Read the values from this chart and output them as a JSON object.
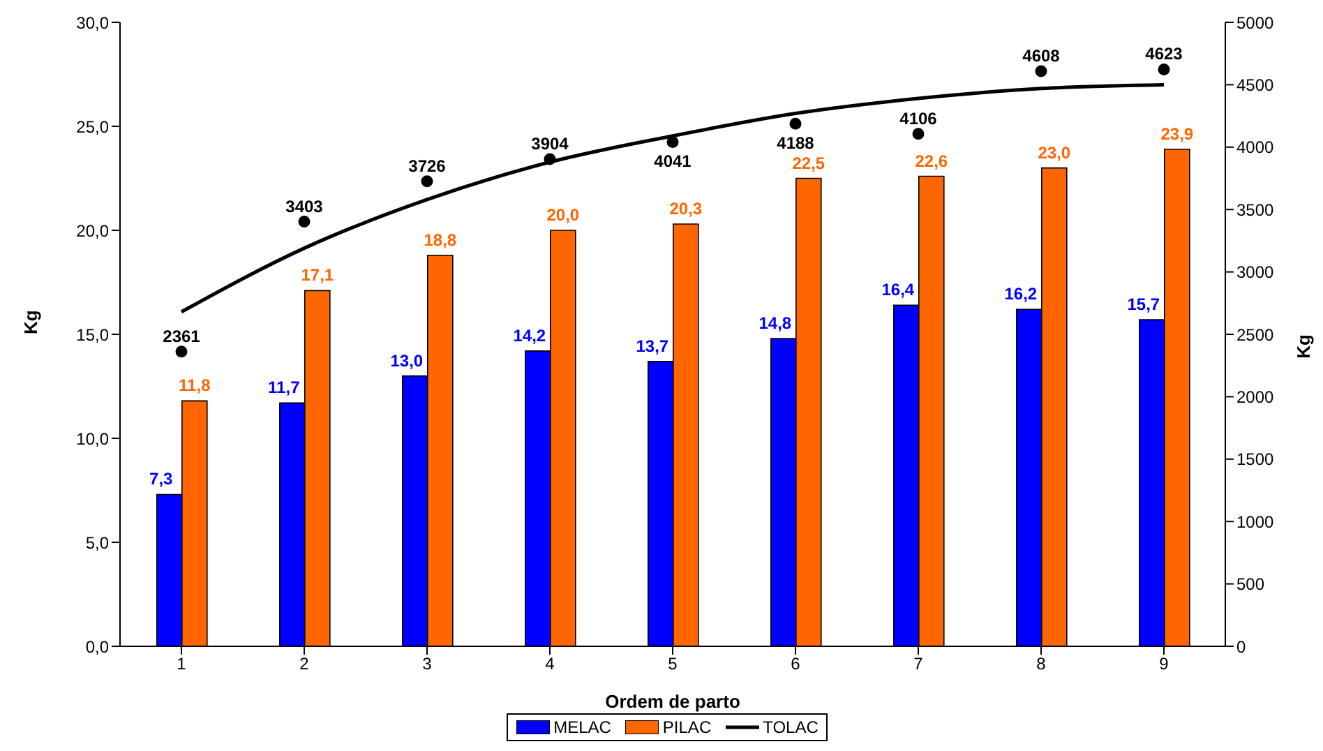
{
  "chart_data": {
    "type": "bar",
    "xlabel": "Ordem de parto",
    "ylabel": "Kg",
    "y2label": "Kg",
    "categories": [
      "1",
      "2",
      "3",
      "4",
      "5",
      "6",
      "7",
      "8",
      "9"
    ],
    "series": [
      {
        "name": "MELAC",
        "color": "#0000ff",
        "values": [
          7.3,
          11.7,
          13.0,
          14.2,
          13.7,
          14.8,
          16.4,
          16.2,
          15.7
        ],
        "value_labels": [
          "7,3",
          "11,7",
          "13,0",
          "14,2",
          "13,7",
          "14,8",
          "16,4",
          "16,2",
          "15,7"
        ]
      },
      {
        "name": "PILAC",
        "color": "#ff6600",
        "values": [
          11.8,
          17.1,
          18.8,
          20.0,
          20.3,
          22.5,
          22.6,
          23.0,
          23.9
        ],
        "value_labels": [
          "11,8",
          "17,1",
          "18,8",
          "20,0",
          "20,3",
          "22,5",
          "22,6",
          "23,0",
          "23,9"
        ]
      },
      {
        "name": "TOLAC",
        "type": "scatter",
        "marker": "circle",
        "axis": "y2",
        "color": "#000000",
        "values": [
          2361,
          3403,
          3726,
          3904,
          4041,
          4188,
          4106,
          4608,
          4623
        ],
        "value_labels": [
          "2361",
          "3403",
          "3726",
          "3904",
          "4041",
          "4188",
          "4106",
          "4608",
          "4623"
        ]
      },
      {
        "type": "line",
        "axis": "y2",
        "color": "#000000",
        "values": [
          2680,
          3190,
          3580,
          3880,
          4090,
          4270,
          4390,
          4470,
          4500
        ]
      }
    ],
    "ylim": [
      0,
      30
    ],
    "yticks": [
      {
        "value": 0,
        "label": "0,0"
      },
      {
        "value": 5,
        "label": "5,0"
      },
      {
        "value": 10,
        "label": "10,0"
      },
      {
        "value": 15,
        "label": "15,0"
      },
      {
        "value": 20,
        "label": "20,0"
      },
      {
        "value": 25,
        "label": "25,0"
      },
      {
        "value": 30,
        "label": "30,0"
      }
    ],
    "y2lim": [
      0,
      5000
    ],
    "y2ticks": [
      0,
      500,
      1000,
      1500,
      2000,
      2500,
      3000,
      3500,
      4000,
      4500,
      5000
    ],
    "grid": false,
    "legend": "bottom"
  }
}
